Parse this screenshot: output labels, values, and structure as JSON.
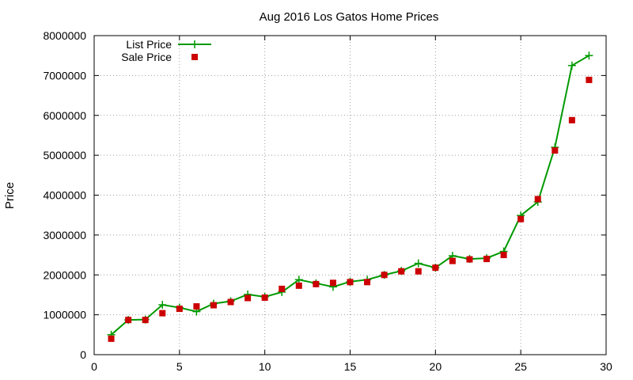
{
  "chart_data": {
    "type": "line",
    "title": "Aug 2016 Los Gatos Home Prices",
    "xlabel": "",
    "ylabel": "Price",
    "xlim": [
      0,
      30
    ],
    "ylim": [
      0,
      8000000
    ],
    "x_ticks": [
      0,
      5,
      10,
      15,
      20,
      25,
      30
    ],
    "y_ticks": [
      0,
      1000000,
      2000000,
      3000000,
      4000000,
      5000000,
      6000000,
      7000000,
      8000000
    ],
    "grid": true,
    "legend_position": "top-left",
    "x": [
      1,
      2,
      3,
      4,
      5,
      6,
      7,
      8,
      9,
      10,
      11,
      12,
      13,
      14,
      15,
      16,
      17,
      18,
      19,
      20,
      21,
      22,
      23,
      24,
      25,
      26,
      27,
      28,
      29
    ],
    "series": [
      {
        "name": "List Price",
        "marker": "plus",
        "style": "line",
        "color": "#009900",
        "values": [
          500000,
          870000,
          880000,
          1250000,
          1180000,
          1080000,
          1280000,
          1340000,
          1510000,
          1450000,
          1570000,
          1880000,
          1790000,
          1700000,
          1830000,
          1880000,
          2000000,
          2100000,
          2290000,
          2180000,
          2480000,
          2400000,
          2420000,
          2590000,
          3490000,
          3830000,
          5200000,
          7250000,
          7500000
        ]
      },
      {
        "name": "Sale Price",
        "marker": "square",
        "style": "points",
        "color": "#cc0000",
        "values": [
          400000,
          870000,
          870000,
          1040000,
          1150000,
          1210000,
          1240000,
          1320000,
          1420000,
          1430000,
          1650000,
          1730000,
          1770000,
          1800000,
          1820000,
          1820000,
          2000000,
          2090000,
          2090000,
          2180000,
          2350000,
          2390000,
          2400000,
          2500000,
          3400000,
          3900000,
          5120000,
          5880000,
          6890000
        ]
      }
    ]
  }
}
